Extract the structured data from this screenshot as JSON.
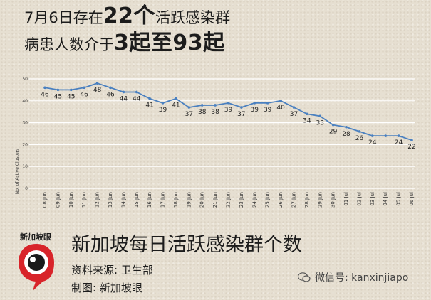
{
  "headline": {
    "line1_pre": "7月6日存在",
    "line1_num": "22个",
    "line1_post": "活跃感染群",
    "line2_pre": "病患人数介于",
    "line2_a": "3起",
    "line2_mid": "至",
    "line2_b": "93起"
  },
  "chart_data": {
    "type": "line",
    "ylabel": "No. of Active Clusters",
    "xlabel": "",
    "ylim": [
      0,
      50
    ],
    "yticks": [
      0,
      10,
      20,
      30,
      40,
      50
    ],
    "grid": true,
    "categories": [
      "08 Jun",
      "09 Jun",
      "10 Jun",
      "11 Jun",
      "12 Jun",
      "13 Jun",
      "14 Jun",
      "15 Jun",
      "16 Jun",
      "17 Jun",
      "18 Jun",
      "19 Jun",
      "20 Jun",
      "21 Jun",
      "22 Jun",
      "23 Jun",
      "24 Jun",
      "25 Jun",
      "26 Jun",
      "27 Jun",
      "28 Jun",
      "29 Jun",
      "30 Jun",
      "01 Jul",
      "02 Jul",
      "03 Jul",
      "04 Jul",
      "05 Jul",
      "06 Jul"
    ],
    "values": [
      46,
      45,
      45,
      46,
      48,
      46,
      44,
      44,
      41,
      39,
      41,
      37,
      38,
      38,
      39,
      37,
      39,
      39,
      40,
      37,
      34,
      33,
      29,
      28,
      26,
      24,
      24,
      24,
      22
    ],
    "labeled": [
      46,
      45,
      45,
      46,
      48,
      46,
      44,
      44,
      41,
      39,
      41,
      37,
      38,
      38,
      39,
      37,
      39,
      39,
      40,
      37,
      34,
      33,
      29,
      28,
      26,
      24,
      null,
      24,
      22
    ],
    "line_color": "#4a80c0"
  },
  "footer": {
    "title": "新加坡每日活跃感染群个数",
    "source": "资料来源:  卫生部",
    "made_by": "制图:  新加坡眼",
    "logo_text": "新加坡眼",
    "wechat": "微信号: kanxinjiapo"
  }
}
